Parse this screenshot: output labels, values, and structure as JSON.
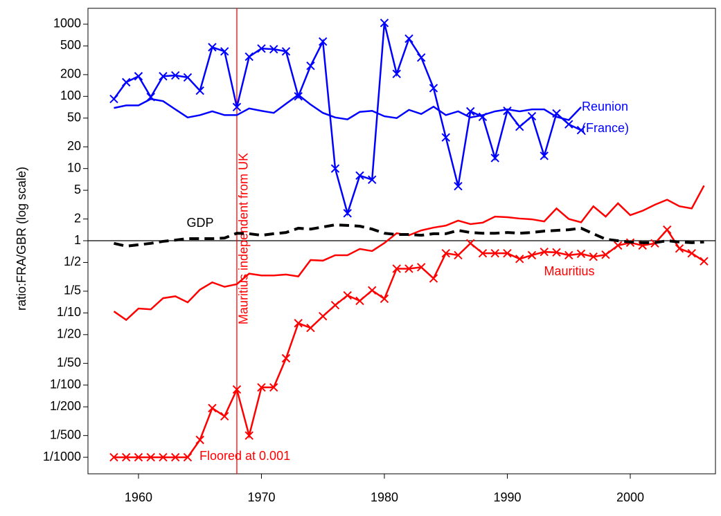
{
  "chart_data": {
    "type": "line",
    "ylabel": "ratio:FRA/GBR (log scale)",
    "log_y": true,
    "x": [
      1958,
      1959,
      1960,
      1961,
      1962,
      1963,
      1964,
      1965,
      1966,
      1967,
      1968,
      1969,
      1970,
      1971,
      1972,
      1973,
      1974,
      1975,
      1976,
      1977,
      1978,
      1979,
      1980,
      1981,
      1982,
      1983,
      1984,
      1985,
      1986,
      1987,
      1988,
      1989,
      1990,
      1991,
      1992,
      1993,
      1994,
      1995,
      1996,
      1997,
      1998,
      1999,
      2000,
      2001,
      2002,
      2003,
      2004,
      2005,
      2006
    ],
    "series": [
      {
        "color": "#0000FF",
        "marker": "x",
        "values": [
          92,
          157,
          190,
          98,
          190,
          195,
          183,
          120,
          480,
          420,
          71,
          355,
          460,
          450,
          420,
          100,
          265,
          575,
          10,
          2.4,
          8,
          7,
          1040,
          205,
          630,
          345,
          130,
          27,
          5.7,
          62,
          52,
          14,
          63,
          38,
          53,
          15,
          58,
          41,
          34,
          null,
          null,
          null,
          null,
          null,
          null,
          null,
          null,
          null,
          null
        ]
      },
      {
        "color": "#0000FF",
        "values": [
          69,
          75,
          75,
          92,
          86,
          66,
          51,
          55,
          62,
          55,
          55,
          68,
          63,
          59,
          79,
          105,
          77,
          59,
          51,
          48,
          61,
          63,
          53,
          50,
          65,
          57,
          72,
          55,
          62,
          51,
          55,
          62,
          66,
          62,
          66,
          66,
          52,
          47,
          71,
          null,
          null,
          null,
          null,
          null,
          null,
          null,
          null,
          null,
          null
        ]
      },
      {
        "color": "#FF0000",
        "values": [
          0.105,
          0.08,
          0.115,
          0.112,
          0.16,
          0.17,
          0.14,
          0.21,
          0.265,
          0.23,
          0.25,
          0.35,
          0.33,
          0.33,
          0.34,
          0.32,
          0.54,
          0.53,
          0.63,
          0.63,
          0.77,
          0.72,
          0.93,
          1.27,
          1.19,
          1.39,
          1.52,
          1.62,
          1.9,
          1.7,
          1.78,
          2.16,
          2.12,
          2.03,
          1.98,
          1.85,
          2.8,
          2.0,
          1.8,
          3.0,
          2.16,
          3.3,
          2.26,
          2.6,
          3.15,
          3.7,
          3.0,
          2.8,
          5.8
        ]
      },
      {
        "color": "#FF0000",
        "marker": "x",
        "values": [
          0.001,
          0.001,
          0.001,
          0.001,
          0.001,
          0.001,
          0.001,
          0.00174,
          0.0048,
          0.0037,
          0.0087,
          0.002,
          0.0093,
          0.0093,
          0.0235,
          0.072,
          0.062,
          0.09,
          0.128,
          0.175,
          0.147,
          0.205,
          0.157,
          0.41,
          0.41,
          0.43,
          0.3,
          0.67,
          0.63,
          0.92,
          0.67,
          0.67,
          0.67,
          0.56,
          0.63,
          0.7,
          0.69,
          0.63,
          0.66,
          0.6,
          0.64,
          0.86,
          0.94,
          0.86,
          0.92,
          1.42,
          0.78,
          0.67,
          0.52
        ]
      },
      {
        "color": "#000000",
        "dash": true,
        "values": [
          0.92,
          0.84,
          0.88,
          0.92,
          0.98,
          1.02,
          1.07,
          1.07,
          1.07,
          1.09,
          1.27,
          1.25,
          1.19,
          1.25,
          1.3,
          1.49,
          1.45,
          1.55,
          1.66,
          1.63,
          1.59,
          1.45,
          1.27,
          1.22,
          1.22,
          1.19,
          1.25,
          1.25,
          1.39,
          1.3,
          1.27,
          1.27,
          1.3,
          1.27,
          1.3,
          1.36,
          1.39,
          1.42,
          1.49,
          1.25,
          1.05,
          1.0,
          0.96,
          0.94,
          0.94,
          1.0,
          0.96,
          0.94,
          0.96
        ]
      }
    ],
    "xlim": [
      1955.89,
      2006.93
    ],
    "ylim": [
      0.00059,
      1660
    ],
    "xticks": [
      1960,
      1970,
      1980,
      1990,
      2000
    ],
    "yticks": [
      1000,
      500,
      200,
      100,
      50,
      20,
      10,
      5,
      2,
      1,
      {
        "value": 0.5,
        "label": "1/2"
      },
      {
        "value": 0.2,
        "label": "1/5"
      },
      {
        "value": 0.1,
        "label": "1/10"
      },
      {
        "value": 0.05,
        "label": "1/20"
      },
      {
        "value": 0.02,
        "label": "1/50"
      },
      {
        "value": 0.01,
        "label": "1/100"
      },
      {
        "value": 0.005,
        "label": "1/200"
      },
      {
        "value": 0.002,
        "label": "1/500"
      },
      {
        "value": 0.001,
        "label": "1/1000"
      }
    ],
    "hline": 1,
    "vline": {
      "x": 1968,
      "label": "Mauritius independent from UK",
      "color": "#FF0000"
    },
    "annotations": [
      {
        "text": "Reunion",
        "color": "#0000FF"
      },
      {
        "text": "(France)",
        "color": "#0000FF"
      },
      {
        "text": "GDP",
        "color": "#000000"
      },
      {
        "text": "Mauritius",
        "color": "#FF0000"
      },
      {
        "text": "Floored at 0.001",
        "color": "#FF0000"
      }
    ]
  }
}
